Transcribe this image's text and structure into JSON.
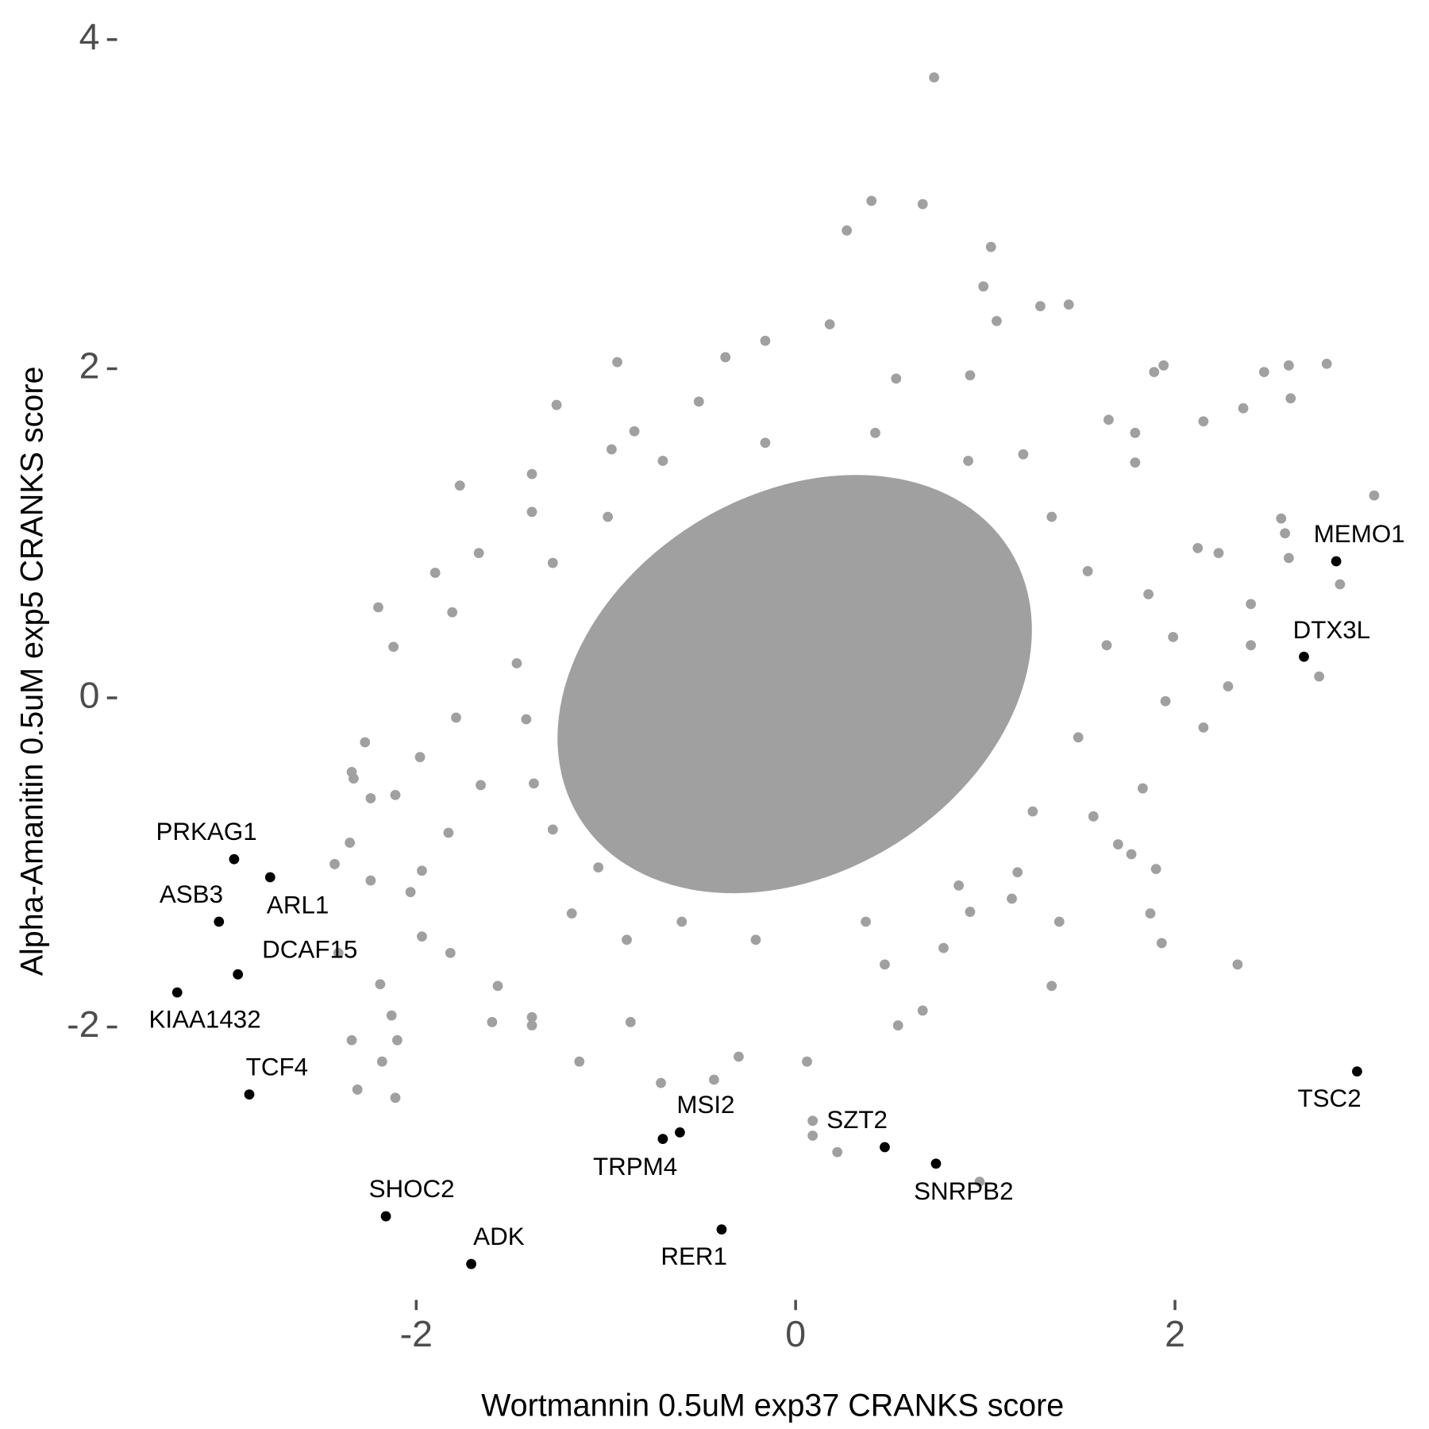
{
  "chart_data": {
    "type": "scatter",
    "xlabel": "Wortmannin 0.5uM exp37 CRANKS score",
    "ylabel": "Alpha-Amanitin 0.5uM exp5 CRANKS score",
    "xlim": [
      -3.35,
      3.1
    ],
    "ylim": [
      -3.6,
      4.05
    ],
    "xticks": [
      -2,
      0,
      2
    ],
    "yticks": [
      -2,
      0,
      2,
      4
    ],
    "grid": false,
    "series": [
      {
        "color": "#a0a0a0",
        "x": [
          0.73,
          0.4,
          0.67,
          0.27,
          1.03,
          0.99,
          1.44,
          1.29,
          1.06,
          0.18,
          -0.16,
          -0.37,
          -0.94,
          2.8,
          2.6,
          1.94,
          1.89,
          2.47,
          2.61,
          2.36,
          -1.26,
          2.15,
          3.05,
          2.56,
          2.58,
          2.6,
          2.87,
          2.76,
          2.4,
          2.4,
          2.28,
          2.15,
          1.9,
          1.87,
          1.93,
          2.33,
          1.35,
          0.78,
          0.97,
          0.09,
          0.09,
          0.22,
          -1.77,
          -1.9,
          -2.2,
          -2.12,
          -2.27,
          -2.34,
          -2.33,
          -2.24,
          -2.11,
          -2.43,
          -2.35,
          -2.24,
          -2.41,
          -2.19,
          -2.13,
          -2.34,
          -2.1,
          -2.18,
          -2.31,
          -2.11,
          -1.97,
          -1.6,
          -1.39,
          -1.39,
          -1.14,
          -0.87,
          -0.71,
          -0.43,
          -0.3,
          0.06,
          0.54,
          0.67,
          1.14,
          1.17,
          1.7,
          1.77,
          1.99,
          2.12,
          2.23,
          1.79,
          1.65,
          1.79,
          1.2,
          0.92,
          0.53,
          -0.51,
          -0.85,
          -0.97,
          -1.39,
          -1.39,
          -1.67,
          -1.81,
          -1.79,
          -1.66,
          -1.98,
          -1.83,
          -1.97,
          -2.03,
          -1.82,
          -1.57,
          1.86,
          1.95,
          1.83,
          1.57,
          1.39,
          0.92,
          0.47,
          -0.89,
          -1.18,
          -1.28,
          -1.47,
          -1.28,
          -0.99,
          -0.7,
          -0.16,
          0.42,
          0.91,
          1.35,
          1.54,
          1.64,
          1.49,
          1.25,
          0.86,
          0.37,
          -0.21,
          -0.6,
          -1.04,
          -1.38,
          -1.42
        ],
        "y": [
          3.77,
          3.02,
          3.0,
          2.84,
          2.74,
          2.5,
          2.39,
          2.38,
          2.29,
          2.27,
          2.17,
          2.07,
          2.04,
          2.03,
          2.02,
          2.02,
          1.98,
          1.98,
          1.82,
          1.76,
          1.78,
          1.68,
          1.23,
          1.09,
          1.0,
          0.85,
          0.69,
          0.13,
          0.32,
          0.57,
          0.07,
          -0.18,
          -1.04,
          -1.31,
          -1.49,
          -1.62,
          -1.75,
          -1.52,
          -2.94,
          -2.57,
          -2.66,
          -2.76,
          1.29,
          0.76,
          0.55,
          0.31,
          -0.27,
          -0.45,
          -0.49,
          -0.61,
          -0.59,
          -1.01,
          -0.88,
          -1.11,
          -1.55,
          -1.74,
          -1.93,
          -2.08,
          -2.08,
          -2.21,
          -2.38,
          -2.43,
          -1.45,
          -1.97,
          -1.94,
          -1.99,
          -2.21,
          -1.97,
          -2.34,
          -2.32,
          -2.18,
          -2.21,
          -1.99,
          -1.9,
          -1.22,
          -1.06,
          -0.89,
          -0.95,
          0.37,
          0.91,
          0.88,
          1.43,
          1.69,
          1.61,
          1.48,
          1.96,
          1.94,
          1.8,
          1.62,
          1.51,
          1.36,
          1.13,
          0.88,
          0.52,
          -0.12,
          -0.53,
          -0.36,
          -0.82,
          -1.05,
          -1.18,
          -1.55,
          -1.75,
          0.63,
          -0.02,
          -0.55,
          -0.72,
          -1.36,
          -1.3,
          -1.62,
          -1.47,
          -1.31,
          -0.8,
          0.21,
          0.82,
          1.1,
          1.44,
          1.55,
          1.61,
          1.44,
          1.1,
          0.77,
          0.32,
          -0.24,
          -0.69,
          -1.14,
          -1.36,
          -1.47,
          -1.36,
          -1.03,
          -0.52,
          -0.13
        ]
      },
      {
        "color": "#000000",
        "labels": [
          "PRKAG1",
          "ARL1",
          "ASB3",
          "DCAF15",
          "KIAA1432",
          "TCF4",
          "SHOC2",
          "ADK",
          "TRPM4",
          "MSI2",
          "RER1",
          "SZT2",
          "SNRPB2",
          "TSC2",
          "MEMO1",
          "DTX3L"
        ],
        "x": [
          -2.96,
          -2.77,
          -3.04,
          -2.94,
          -3.26,
          -2.88,
          -2.16,
          -1.71,
          -0.7,
          -0.61,
          -0.39,
          0.47,
          0.74,
          2.96,
          2.85,
          2.68
        ],
        "y": [
          -0.98,
          -1.09,
          -1.36,
          -1.68,
          -1.79,
          -2.41,
          -3.15,
          -3.44,
          -2.68,
          -2.64,
          -3.23,
          -2.73,
          -2.83,
          -2.27,
          0.83,
          0.25
        ]
      }
    ]
  }
}
